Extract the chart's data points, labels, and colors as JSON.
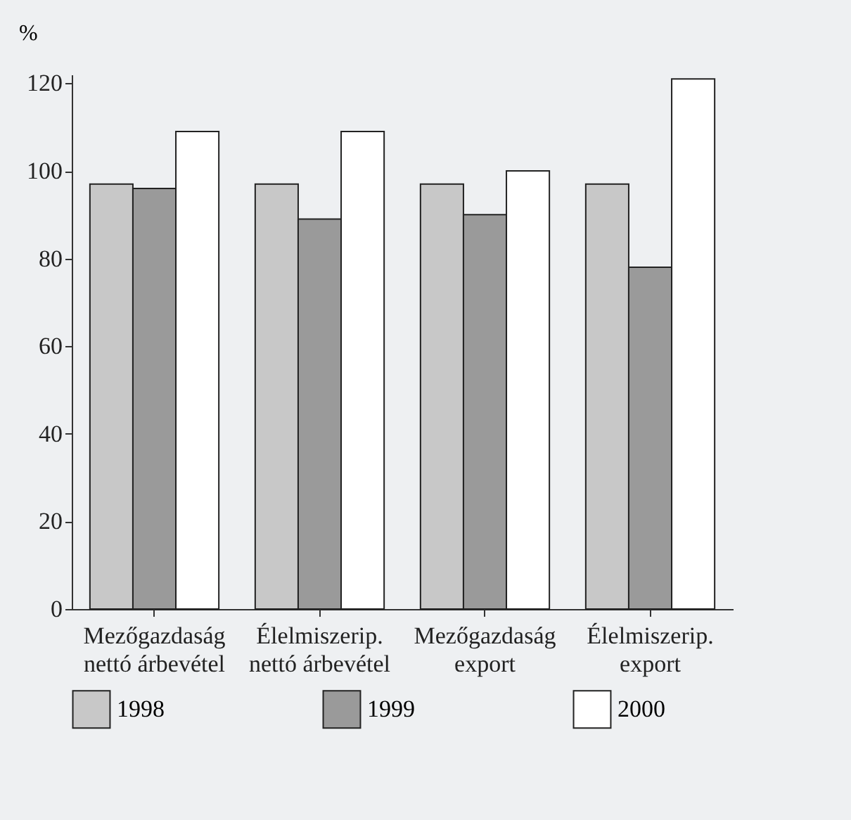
{
  "chart_data": {
    "type": "bar",
    "ylabel": "%",
    "categories": [
      "Mezőgazdaság nettó árbevétel",
      "Élelmiszerip. nettó árbevétel",
      "Mezőgazdaság export",
      "Élelmiszerip. export"
    ],
    "series": [
      {
        "name": "1998",
        "color": "#c8c8c8",
        "values": [
          97,
          97,
          97,
          97
        ]
      },
      {
        "name": "1999",
        "color": "#9a9a9a",
        "values": [
          96,
          89,
          90,
          78
        ]
      },
      {
        "name": "2000",
        "color": "#ffffff",
        "values": [
          109,
          109,
          100,
          121
        ]
      }
    ],
    "ylim": [
      0,
      122
    ],
    "yticks": [
      0,
      20,
      40,
      60,
      80,
      100,
      120
    ],
    "grid": false,
    "legend": "bottom"
  }
}
